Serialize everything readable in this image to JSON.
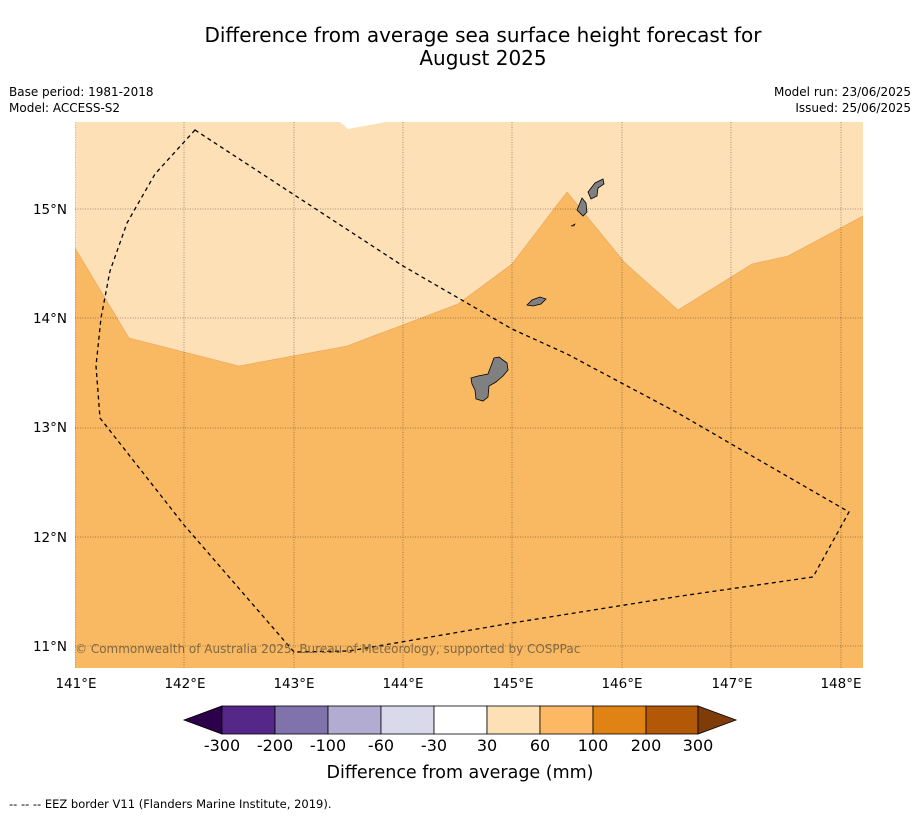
{
  "title_line1": "Difference from average sea surface height forecast for",
  "title_line2": "August 2025",
  "meta_left": {
    "base_period": "Base period: 1981-2018",
    "model": "Model: ACCESS-S2"
  },
  "meta_right": {
    "model_run": "Model run: 23/06/2025",
    "issued": "Issued: 25/06/2025"
  },
  "map": {
    "lon_labels": [
      "141°E",
      "142°E",
      "143°E",
      "144°E",
      "145°E",
      "146°E",
      "147°E",
      "148°E"
    ],
    "lat_labels": [
      "15°N",
      "14°N",
      "13°N",
      "12°N",
      "11°N"
    ],
    "copyright": "© Commonwealth of Australia 2025, Bureau of Meteorology, supported by COSPPac",
    "colors": {
      "band_30_60": "#fde0b6",
      "band_60_100": "#f9b862",
      "land": "#808080"
    }
  },
  "legend": {
    "ticks": [
      "-300",
      "-200",
      "-100",
      "-60",
      "-30",
      "30",
      "60",
      "100",
      "200",
      "300"
    ],
    "colors": [
      "#2d004b",
      "#542788",
      "#8073ac",
      "#b2abd2",
      "#d8daeb",
      "#ffffff",
      "#fee0b6",
      "#fdb863",
      "#e08214",
      "#b35806",
      "#7f3b08"
    ],
    "label": "Difference from average (mm)"
  },
  "footnote": "--  --  -- EEZ border V11 (Flanders Marine Institute, 2019)."
}
